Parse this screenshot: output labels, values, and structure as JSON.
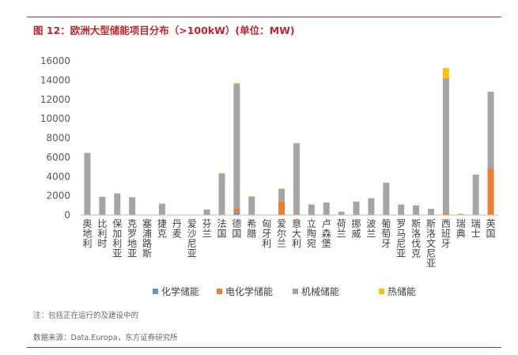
{
  "header": {
    "title": "图 12：欧洲大型储能项目分布（>100kW）(单位：MW)"
  },
  "footer": {
    "note": "注：包括正在运行的及建设中的",
    "source": "数据来源：Data.Europa，东方证券研究所"
  },
  "colors": {
    "accent": "#c0262d",
    "chemical": "#5b9bd5",
    "electrochemical": "#ed7d31",
    "mechanical": "#a5a5a5",
    "thermal": "#ffc000"
  },
  "chart_data": {
    "type": "bar",
    "stacked": true,
    "title": "",
    "xlabel": "",
    "ylabel": "",
    "ylim": [
      0,
      16000
    ],
    "yticks": [
      "0",
      "2000",
      "4000",
      "6000",
      "8000",
      "10000",
      "12000",
      "14000",
      "16000"
    ],
    "grid": false,
    "legend_position": "bottom",
    "categories": [
      "奥地利",
      "比利时",
      "保加利亚",
      "克罗地亚",
      "塞浦路斯",
      "捷克",
      "丹麦",
      "爱沙尼亚",
      "芬兰",
      "法国",
      "德国",
      "希腊",
      "匈牙利",
      "爱尔兰",
      "意大利",
      "立陶宛",
      "卢森堡",
      "荷兰",
      "挪威",
      "波兰",
      "葡萄牙",
      "罗马尼亚",
      "斯洛伐克",
      "斯洛文尼亚",
      "西班牙",
      "瑞典",
      "瑞士",
      "英国"
    ],
    "series": [
      {
        "name": "化学储能",
        "color": "#5b9bd5",
        "values": [
          0,
          0,
          0,
          0,
          0,
          0,
          0,
          0,
          0,
          0,
          250,
          0,
          0,
          0,
          0,
          0,
          0,
          0,
          0,
          0,
          0,
          0,
          0,
          0,
          0,
          0,
          0,
          0
        ]
      },
      {
        "name": "电化学储能",
        "color": "#ed7d31",
        "values": [
          30,
          0,
          0,
          0,
          0,
          30,
          0,
          0,
          0,
          100,
          450,
          0,
          0,
          1400,
          150,
          0,
          0,
          0,
          0,
          0,
          0,
          0,
          0,
          0,
          200,
          50,
          0,
          4800
        ]
      },
      {
        "name": "机械储能",
        "color": "#a5a5a5",
        "values": [
          6420,
          1900,
          2250,
          1850,
          0,
          1150,
          0,
          0,
          580,
          4200,
          12900,
          1900,
          0,
          1300,
          7280,
          1100,
          1300,
          350,
          1400,
          1750,
          3350,
          1100,
          1000,
          650,
          14000,
          50,
          4200,
          8000
        ]
      },
      {
        "name": "热储能",
        "color": "#ffc000",
        "values": [
          0,
          0,
          0,
          0,
          0,
          0,
          0,
          0,
          0,
          50,
          100,
          50,
          0,
          50,
          50,
          0,
          0,
          0,
          0,
          0,
          0,
          0,
          0,
          0,
          1050,
          50,
          0,
          0
        ]
      }
    ]
  }
}
